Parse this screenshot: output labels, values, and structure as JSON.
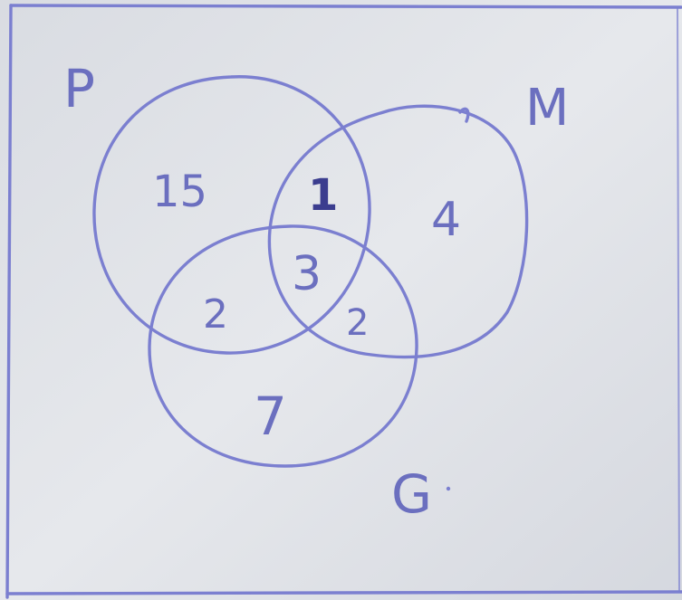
{
  "sets": [
    {
      "label": "P"
    },
    {
      "label": "M"
    },
    {
      "label": "G"
    }
  ],
  "regions": {
    "p_only": "15",
    "m_only": "4",
    "g_only": "7",
    "p_and_m_only": "1",
    "p_and_g_only": "2",
    "m_and_g_only": "2",
    "p_m_g": "3"
  },
  "colors": {
    "ink": "#7b7fd0",
    "ink_dark": "#3b3d8f",
    "paper": "#dfe2e8"
  }
}
